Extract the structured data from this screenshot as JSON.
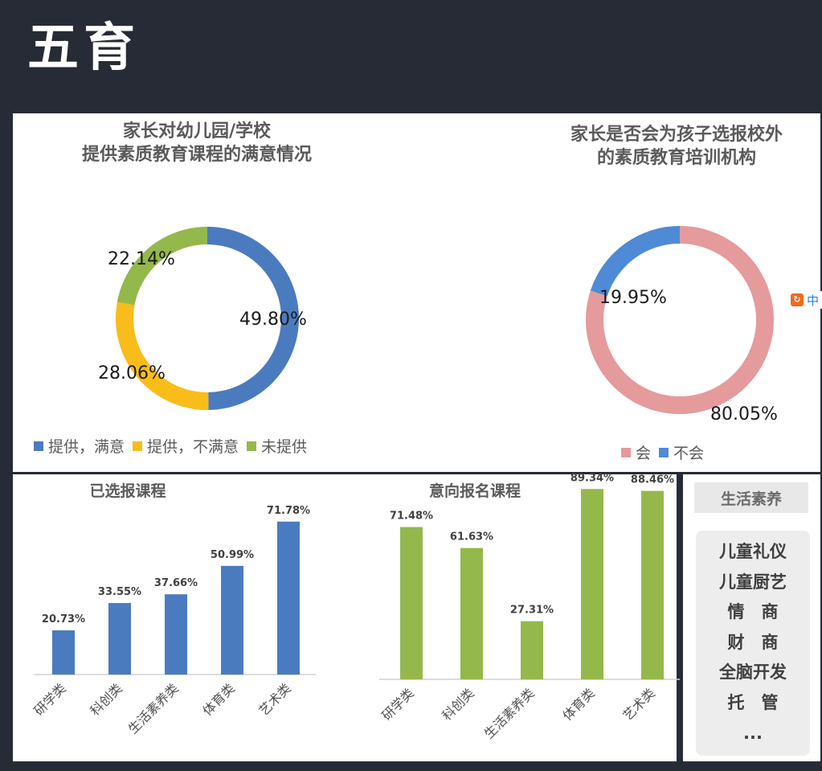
{
  "page": {
    "title": "五育"
  },
  "side_panel": {
    "tag": "生活素养",
    "items": [
      "儿童礼仪",
      "儿童厨艺",
      "情　商",
      "财　商",
      "全脑开发",
      "托　管",
      "..."
    ]
  },
  "badge": {
    "text": "中"
  },
  "colors": {
    "blue": "#4b7bbf",
    "yellow": "#f8bd1a",
    "green": "#94b84b",
    "pink": "#e59a9c",
    "blue2": "#4f8ad6"
  },
  "chart_data": [
    {
      "type": "pie",
      "donut": true,
      "title_lines": [
        "家长对幼儿园/学校",
        "提供素质教育课程的满意情况"
      ],
      "slices": [
        {
          "label": "提供，满意",
          "value": 49.8,
          "display": "49.80%",
          "color": "#4b7bbf"
        },
        {
          "label": "提供，不满意",
          "value": 28.06,
          "display": "28.06%",
          "color": "#f8bd1a"
        },
        {
          "label": "未提供",
          "value": 22.14,
          "display": "22.14%",
          "color": "#94b84b"
        }
      ],
      "legend_position": "bottom"
    },
    {
      "type": "pie",
      "donut": true,
      "title_lines": [
        "家长是否会为孩子选报校外",
        "的素质教育培训机构"
      ],
      "slices": [
        {
          "label": "会",
          "value": 80.05,
          "display": "80.05%",
          "color": "#e59a9c"
        },
        {
          "label": "不会",
          "value": 19.95,
          "display": "19.95%",
          "color": "#4f8ad6"
        }
      ],
      "legend_position": "bottom"
    },
    {
      "type": "bar",
      "title": "已选报课程",
      "categories": [
        "研学类",
        "科创类",
        "生活素养类",
        "体育类",
        "艺术类"
      ],
      "values": [
        20.73,
        33.55,
        37.66,
        50.99,
        71.78
      ],
      "value_labels": [
        "20.73%",
        "33.55%",
        "37.66%",
        "50.99%",
        "71.78%"
      ],
      "color": "#4b7bbf",
      "ylim": [
        0,
        80
      ]
    },
    {
      "type": "bar",
      "title": "意向报名课程",
      "categories": [
        "研学类",
        "科创类",
        "生活素养类",
        "体育类",
        "艺术类"
      ],
      "values": [
        71.48,
        61.63,
        27.31,
        89.34,
        88.46
      ],
      "value_labels": [
        "71.48%",
        "61.63%",
        "27.31%",
        "89.34%",
        "88.46%"
      ],
      "color": "#94b84b",
      "ylim": [
        0,
        100
      ]
    }
  ]
}
